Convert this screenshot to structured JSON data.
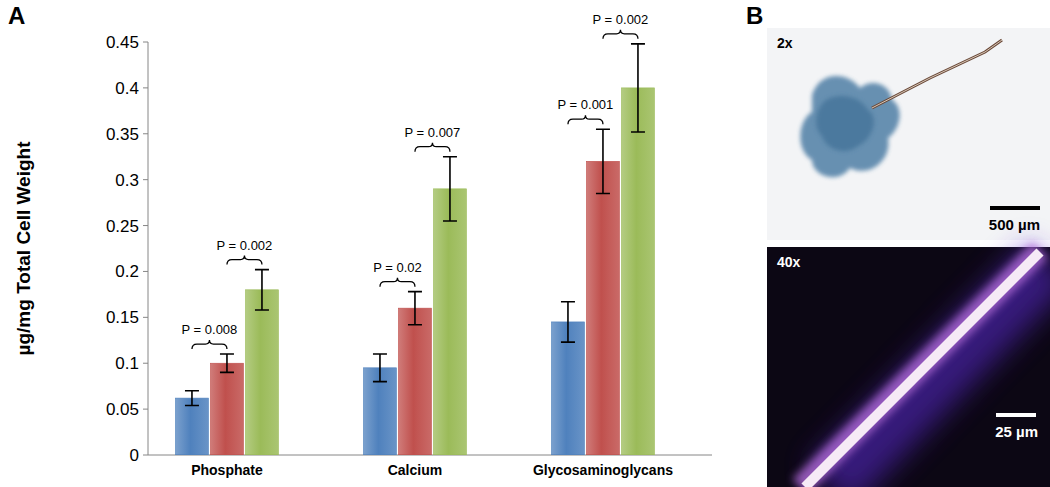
{
  "chart_data": {
    "type": "bar",
    "title": "A",
    "y_label": "µg/mg Total Cell Weight",
    "categories": [
      "Phosphate",
      "Calcium",
      "Glycosaminoglycans"
    ],
    "series": [
      {
        "color": "#4f81bd",
        "values": [
          0.062,
          0.095,
          0.145
        ],
        "errors": [
          0.008,
          0.015,
          0.022
        ]
      },
      {
        "color": "#c0504d",
        "values": [
          0.1,
          0.16,
          0.32
        ],
        "errors": [
          0.01,
          0.018,
          0.035
        ]
      },
      {
        "color": "#9bbb59",
        "values": [
          0.18,
          0.29,
          0.4
        ],
        "errors": [
          0.022,
          0.035,
          0.048
        ]
      }
    ],
    "annotations": [
      [
        "P = 0.008",
        "P = 0.002"
      ],
      [
        "P = 0.02",
        "P = 0.007"
      ],
      [
        "P = 0.001",
        "P = 0.002"
      ]
    ],
    "ylim": [
      0,
      0.45
    ],
    "yticks": [
      0,
      0.05,
      0.1,
      0.15,
      0.2,
      0.25,
      0.3,
      0.35,
      0.4,
      0.45
    ],
    "grid": false
  },
  "images": {
    "label": "B",
    "items": [
      {
        "magnification": "2x",
        "scale_bar": "500 µm"
      },
      {
        "magnification": "40x",
        "scale_bar": "25 µm"
      }
    ]
  }
}
